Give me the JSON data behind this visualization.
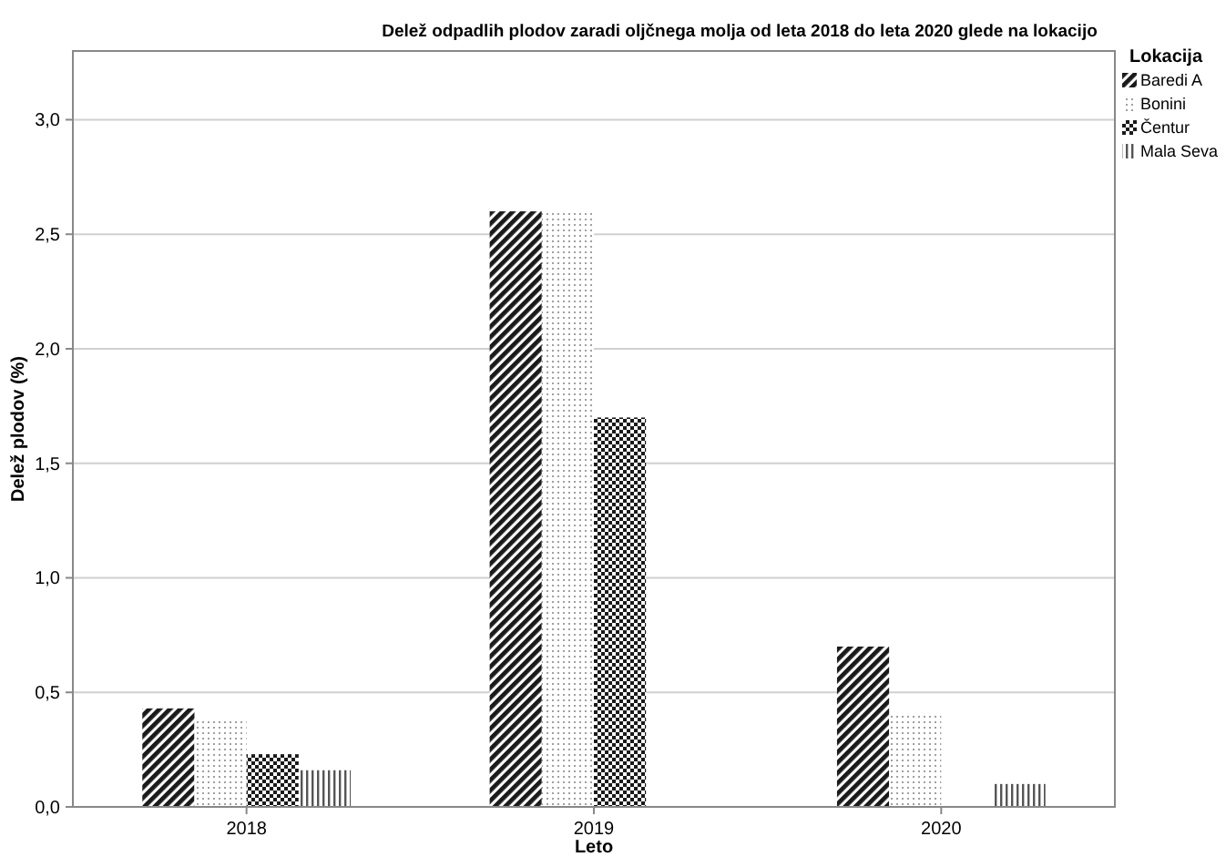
{
  "chart_data": {
    "type": "bar",
    "title": "Delež odpadlih plodov zaradi oljčnega molja od leta 2018 do leta 2020 glede na lokacijo",
    "xlabel": "Leto",
    "ylabel": "Delež plodov (%)",
    "legend_title": "Lokacija",
    "categories": [
      "2018",
      "2019",
      "2020"
    ],
    "series": [
      {
        "name": "Baredi A",
        "color": "#1a1a1a",
        "values": [
          0.43,
          2.6,
          0.7
        ]
      },
      {
        "name": "Bonini",
        "color": "#a0a0a0",
        "values": [
          0.38,
          2.6,
          0.4
        ]
      },
      {
        "name": "Čentur",
        "color": "#1a1a1a",
        "values": [
          0.23,
          1.7,
          null
        ]
      },
      {
        "name": "Mala Seva",
        "color": "#555555",
        "values": [
          0.16,
          null,
          0.1
        ]
      }
    ],
    "ylim": [
      0,
      3.3
    ],
    "yticks": [
      {
        "value": 0,
        "label": "0,0"
      },
      {
        "value": 0.5,
        "label": "0,5"
      },
      {
        "value": 1,
        "label": "1,0"
      },
      {
        "value": 1.5,
        "label": "1,5"
      },
      {
        "value": 2,
        "label": "2,0"
      },
      {
        "value": 2.5,
        "label": "2,5"
      },
      {
        "value": 3,
        "label": "3,0"
      }
    ],
    "grid": "y",
    "legend": "top right"
  }
}
